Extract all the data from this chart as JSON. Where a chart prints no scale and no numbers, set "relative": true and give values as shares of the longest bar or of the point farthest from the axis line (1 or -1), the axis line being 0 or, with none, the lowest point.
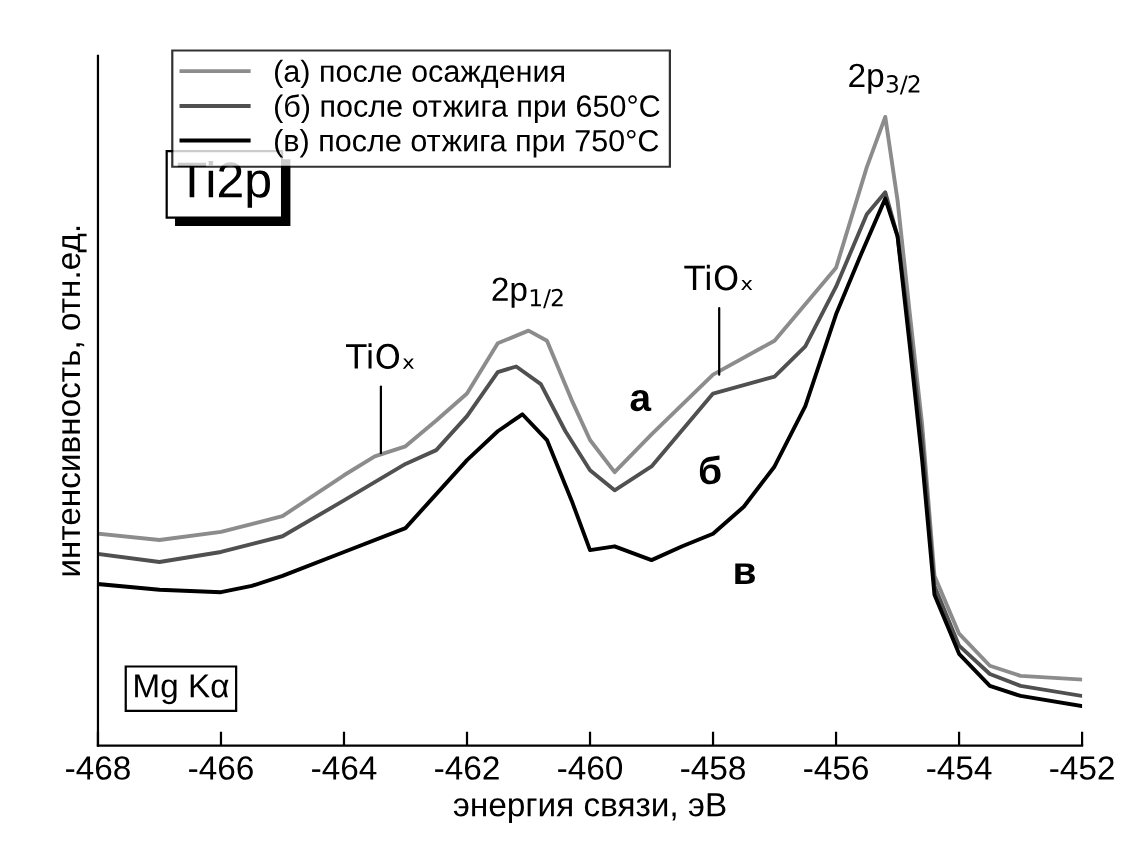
{
  "chart_data": {
    "type": "line",
    "relative": true,
    "xlabel": "энергия связи, эВ",
    "ylabel": "интенсивность, отн.ед.",
    "xlim": [
      -468,
      -452
    ],
    "xticks": [
      {
        "value": -468,
        "label": "-468"
      },
      {
        "value": -466,
        "label": "-466"
      },
      {
        "value": -464,
        "label": "-464"
      },
      {
        "value": -462,
        "label": "-462"
      },
      {
        "value": -460,
        "label": "-460"
      },
      {
        "value": -458,
        "label": "-458"
      },
      {
        "value": -456,
        "label": "-456"
      },
      {
        "value": -454,
        "label": "-454"
      },
      {
        "value": -452,
        "label": "-452"
      }
    ],
    "grid": false,
    "legend": "top left",
    "marker": "none",
    "line_style": "solid",
    "series": [
      {
        "name": "(а) после осаждения",
        "color": "#8c8c8c",
        "x": [
          -468,
          -467,
          -466,
          -465,
          -464,
          -463.5,
          -463,
          -462.5,
          -462,
          -461.5,
          -461,
          -460.7,
          -460.3,
          -460,
          -459.6,
          -459,
          -458,
          -457,
          -456,
          -455.5,
          -455.2,
          -455,
          -454.8,
          -454.6,
          -454.4,
          -454,
          -453.5,
          -453,
          -452
        ],
        "values": [
          0.337,
          0.327,
          0.34,
          0.365,
          0.43,
          0.46,
          0.476,
          0.517,
          0.56,
          0.64,
          0.66,
          0.644,
          0.55,
          0.486,
          0.435,
          0.495,
          0.59,
          0.644,
          0.76,
          0.92,
          1.0,
          0.867,
          0.686,
          0.51,
          0.27,
          0.178,
          0.127,
          0.111,
          0.105
        ]
      },
      {
        "name": "(б) после отжига при 650°C",
        "color": "#505050",
        "x": [
          -468,
          -467,
          -466,
          -465,
          -464,
          -463,
          -462.5,
          -462,
          -461.5,
          -461.2,
          -460.8,
          -460.4,
          -460,
          -459.6,
          -459,
          -458,
          -457,
          -456.5,
          -456,
          -455.5,
          -455.2,
          -455,
          -454.8,
          -454.6,
          -454.4,
          -454,
          -453.5,
          -453,
          -452
        ],
        "values": [
          0.305,
          0.292,
          0.308,
          0.333,
          0.39,
          0.448,
          0.47,
          0.524,
          0.594,
          0.603,
          0.575,
          0.5,
          0.438,
          0.406,
          0.444,
          0.56,
          0.587,
          0.635,
          0.73,
          0.845,
          0.88,
          0.81,
          0.654,
          0.486,
          0.254,
          0.159,
          0.114,
          0.095,
          0.079
        ]
      },
      {
        "name": "(в) после отжига при 750°C",
        "color": "#000000",
        "x": [
          -468,
          -467,
          -466,
          -465.5,
          -465,
          -464,
          -463,
          -462.5,
          -462,
          -461.5,
          -461.1,
          -460.7,
          -460.3,
          -460,
          -459.6,
          -459,
          -458.5,
          -458,
          -457.5,
          -457,
          -456.5,
          -456,
          -455.6,
          -455.2,
          -455,
          -454.8,
          -454.6,
          -454.4,
          -454,
          -453.5,
          -453,
          -452
        ],
        "values": [
          0.257,
          0.248,
          0.244,
          0.254,
          0.27,
          0.308,
          0.346,
          0.4,
          0.454,
          0.5,
          0.527,
          0.486,
          0.39,
          0.311,
          0.317,
          0.295,
          0.317,
          0.337,
          0.38,
          0.444,
          0.54,
          0.686,
          0.78,
          0.87,
          0.81,
          0.635,
          0.454,
          0.24,
          0.146,
          0.095,
          0.079,
          0.063
        ]
      }
    ],
    "annotations": [
      {
        "text": "2p$_{1/2}$",
        "x": -461,
        "y": 0.66
      },
      {
        "text": "2p$_{3/2}$",
        "x": -455.2,
        "y": 1.0
      },
      {
        "text": "TiOₓ",
        "x": -463.4,
        "y": 0.465
      },
      {
        "text": "TiOₓ",
        "x": -457.9,
        "y": 0.59
      },
      "а",
      "б",
      "в",
      "Ti2p",
      "Mg Kα"
    ]
  }
}
